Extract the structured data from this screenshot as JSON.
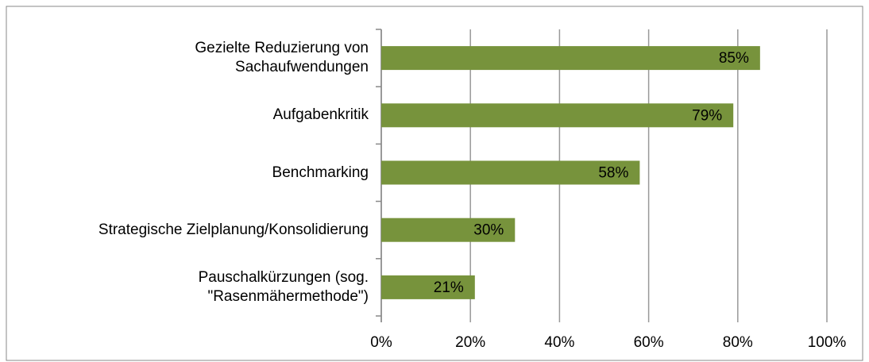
{
  "chart_data": {
    "type": "bar",
    "orientation": "horizontal",
    "categories": [
      "Gezielte Reduzierung von\nSachaufwendungen",
      "Aufgabenkritik",
      "Benchmarking",
      "Strategische Zielplanung/Konsolidierung",
      "Pauschalkürzungen (sog.\n\"Rasenmähermethode\")"
    ],
    "values": [
      85,
      79,
      58,
      30,
      21
    ],
    "value_labels": [
      "85%",
      "79%",
      "58%",
      "30%",
      "21%"
    ],
    "color": "#77933c",
    "xlim": [
      0,
      100
    ],
    "xticks": [
      {
        "value": 0,
        "label": "0%"
      },
      {
        "value": 20,
        "label": "20%"
      },
      {
        "value": 40,
        "label": "40%"
      },
      {
        "value": 60,
        "label": "60%"
      },
      {
        "value": 80,
        "label": "80%"
      },
      {
        "value": 100,
        "label": "100%"
      }
    ],
    "grid": true
  }
}
